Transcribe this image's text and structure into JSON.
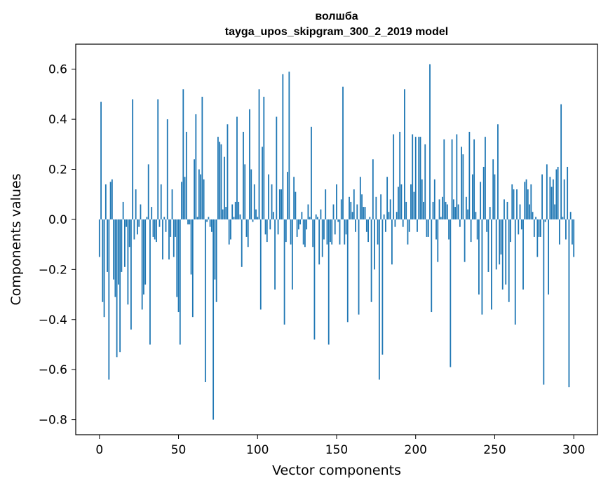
{
  "chart_data": {
    "type": "bar",
    "title": "волшба",
    "subtitle": "tayga_upos_skipgram_300_2_2019 model",
    "xlabel": "Vector components",
    "ylabel": "Components values",
    "xlim": [
      -15,
      315
    ],
    "ylim": [
      -0.86,
      0.7
    ],
    "xticks": [
      0,
      50,
      100,
      150,
      200,
      250,
      300
    ],
    "xtick_labels": [
      "0",
      "50",
      "100",
      "150",
      "200",
      "250",
      "300"
    ],
    "yticks": [
      0.6,
      0.4,
      0.2,
      0.0,
      -0.2,
      -0.4,
      -0.6,
      -0.8
    ],
    "ytick_labels": [
      "0.6",
      "0.4",
      "0.2",
      "0.0",
      "−0.2",
      "−0.4",
      "−0.6",
      "−0.8"
    ],
    "color": "#1f77b4",
    "values": [
      -0.15,
      0.47,
      -0.33,
      -0.39,
      0.14,
      -0.21,
      -0.64,
      0.15,
      0.16,
      -0.24,
      -0.31,
      -0.55,
      -0.26,
      -0.53,
      -0.21,
      0.07,
      -0.19,
      -0.03,
      -0.34,
      -0.11,
      -0.44,
      0.48,
      -0.08,
      0.12,
      -0.06,
      -0.03,
      0.06,
      -0.36,
      -0.3,
      -0.26,
      0.01,
      0.22,
      -0.5,
      0.05,
      -0.07,
      -0.08,
      -0.09,
      0.48,
      -0.03,
      0.14,
      -0.16,
      0.01,
      -0.05,
      0.4,
      -0.16,
      -0.07,
      0.12,
      -0.15,
      -0.07,
      -0.31,
      -0.37,
      -0.5,
      0.15,
      0.52,
      0.17,
      0.35,
      -0.02,
      -0.02,
      -0.22,
      -0.39,
      0.24,
      0.42,
      0.01,
      0.2,
      0.18,
      0.49,
      0.16,
      -0.65,
      -0.01,
      0.01,
      -0.03,
      -0.05,
      -0.8,
      -0.24,
      -0.33,
      0.33,
      0.31,
      0.3,
      0.04,
      0.25,
      0.05,
      0.38,
      -0.1,
      -0.08,
      0.06,
      0.01,
      0.07,
      0.41,
      0.07,
      0.02,
      -0.19,
      0.35,
      0.22,
      -0.07,
      -0.11,
      0.44,
      0.2,
      -0.01,
      0.14,
      0.04,
      0.01,
      0.52,
      -0.36,
      0.29,
      0.49,
      -0.06,
      -0.09,
      0.18,
      -0.04,
      0.14,
      0.03,
      -0.28,
      0.41,
      -0.06,
      0.12,
      0.12,
      0.58,
      -0.42,
      -0.09,
      0.19,
      0.59,
      -0.1,
      -0.28,
      0.17,
      0.11,
      -0.07,
      -0.04,
      -0.02,
      0.03,
      -0.1,
      -0.11,
      -0.04,
      0.06,
      0.01,
      0.37,
      -0.11,
      -0.48,
      0.02,
      0.01,
      -0.18,
      0.04,
      -0.15,
      -0.08,
      0.12,
      -0.1,
      -0.5,
      -0.09,
      -0.1,
      0.06,
      -0.06,
      0.14,
      -0.01,
      -0.1,
      0.08,
      0.53,
      -0.1,
      -0.06,
      -0.41,
      0.09,
      0.07,
      0.03,
      0.12,
      -0.05,
      0.06,
      -0.38,
      0.17,
      0.1,
      0.05,
      0.05,
      -0.05,
      -0.09,
      0.01,
      -0.33,
      0.24,
      -0.2,
      0.09,
      -0.1,
      -0.64,
      0.1,
      -0.54,
      0.02,
      -0.05,
      0.17,
      0.03,
      0.08,
      -0.18,
      0.34,
      -0.03,
      0.03,
      0.13,
      0.35,
      0.14,
      -0.03,
      0.52,
      0.07,
      -0.1,
      -0.05,
      0.14,
      0.34,
      0.11,
      0.33,
      -0.05,
      0.33,
      0.33,
      0.16,
      0.07,
      0.3,
      -0.07,
      -0.07,
      0.62,
      -0.37,
      0.07,
      0.16,
      -0.08,
      -0.17,
      0.08,
      0.01,
      0.09,
      0.32,
      0.07,
      0.06,
      -0.08,
      -0.59,
      0.32,
      0.08,
      0.05,
      0.34,
      0.06,
      -0.03,
      0.29,
      0.26,
      -0.17,
      0.09,
      0.04,
      0.35,
      -0.09,
      0.18,
      0.32,
      0.03,
      -0.08,
      -0.3,
      0.15,
      -0.38,
      0.21,
      0.33,
      -0.05,
      -0.21,
      0.05,
      -0.36,
      0.24,
      0.18,
      -0.2,
      0.38,
      -0.18,
      -0.14,
      -0.28,
      0.08,
      -0.26,
      0.07,
      -0.33,
      -0.09,
      0.14,
      0.12,
      -0.42,
      0.12,
      -0.06,
      0.06,
      -0.04,
      -0.28,
      0.15,
      0.16,
      0.12,
      0.06,
      0.14,
      0.03,
      -0.07,
      0.01,
      -0.15,
      -0.07,
      -0.07,
      0.18,
      -0.66,
      -0.01,
      0.22,
      -0.3,
      0.17,
      0.13,
      0.16,
      0.06,
      0.2,
      0.21,
      -0.1,
      0.46,
      0.01,
      0.16,
      -0.08,
      0.21,
      -0.67,
      0.03,
      -0.1,
      -0.15
    ]
  }
}
